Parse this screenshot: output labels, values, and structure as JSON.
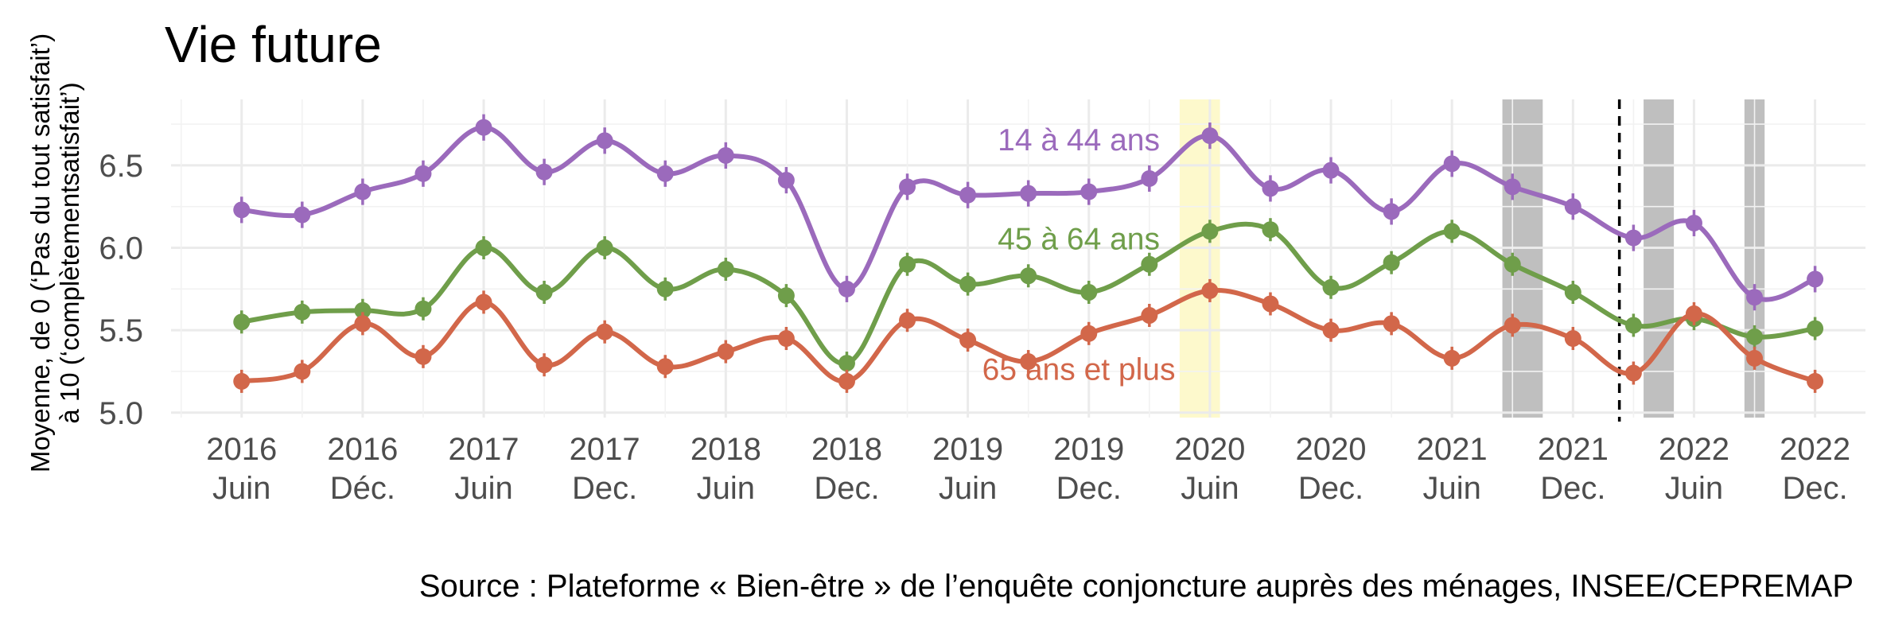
{
  "chart_data": {
    "type": "line",
    "title": "Vie future",
    "ylabel_lines": [
      "Moyenne, de 0 (‘Pas du tout satisfait’)",
      "à 10 (‘complètementsatisfait’)"
    ],
    "caption": "Source : Plateforme « Bien-être » de l’enquête conjoncture auprès des ménages, INSEE/CEPREMAP",
    "ylim": [
      4.97,
      6.9
    ],
    "yticks": [
      "5.0",
      "5.5",
      "6.0",
      "6.5"
    ],
    "grid": true,
    "xticks": [
      {
        "year": "2016",
        "period": "Juin"
      },
      {
        "year": "2016",
        "period": "Déc."
      },
      {
        "year": "2017",
        "period": "Juin"
      },
      {
        "year": "2017",
        "period": "Dec."
      },
      {
        "year": "2018",
        "period": "Juin"
      },
      {
        "year": "2018",
        "period": "Dec."
      },
      {
        "year": "2019",
        "period": "Juin"
      },
      {
        "year": "2019",
        "period": "Dec."
      },
      {
        "year": "2020",
        "period": "Juin"
      },
      {
        "year": "2020",
        "period": "Dec."
      },
      {
        "year": "2021",
        "period": "Juin"
      },
      {
        "year": "2021",
        "period": "Dec."
      },
      {
        "year": "2022",
        "period": "Juin"
      },
      {
        "year": "2022",
        "period": "Dec."
      }
    ],
    "x_unit": "months since 2016 Juin (tick every 6 months)",
    "x_range": [
      -3.5,
      80.5
    ],
    "highlight_bands": [
      {
        "from": 46.5,
        "to": 48.5,
        "color": "#fdf9cc"
      },
      {
        "from": 62.5,
        "to": 64.5,
        "color": "#bfbfbf"
      },
      {
        "from": 69.5,
        "to": 71.0,
        "color": "#bfbfbf"
      },
      {
        "from": 74.5,
        "to": 75.5,
        "color": "#bfbfbf"
      }
    ],
    "vline": {
      "x": 68.3,
      "style": "dashed"
    },
    "series": [
      {
        "name": "14 à 44 ans",
        "color": "#9b6abc",
        "x": [
          0,
          3,
          6,
          9,
          12,
          15,
          18,
          21,
          24,
          27,
          30,
          33,
          36,
          39,
          42,
          45,
          48,
          51,
          54,
          57,
          60,
          63,
          66,
          69,
          72,
          75,
          78
        ],
        "values": [
          6.23,
          6.2,
          6.34,
          6.45,
          6.73,
          6.46,
          6.65,
          6.45,
          6.56,
          6.41,
          5.75,
          6.37,
          6.32,
          6.33,
          6.34,
          6.42,
          6.68,
          6.36,
          6.47,
          6.22,
          6.51,
          6.37,
          6.25,
          6.06,
          6.15,
          5.7,
          5.81
        ],
        "err": 0.08
      },
      {
        "name": "45 à 64 ans",
        "color": "#6f9e4a",
        "x": [
          0,
          3,
          6,
          9,
          12,
          15,
          18,
          21,
          24,
          27,
          30,
          33,
          36,
          39,
          42,
          45,
          48,
          51,
          54,
          57,
          60,
          63,
          66,
          69,
          72,
          75,
          78
        ],
        "values": [
          5.55,
          5.61,
          5.62,
          5.63,
          6.0,
          5.73,
          6.0,
          5.75,
          5.87,
          5.71,
          5.3,
          5.9,
          5.78,
          5.83,
          5.73,
          5.9,
          6.1,
          6.11,
          5.76,
          5.91,
          6.1,
          5.9,
          5.73,
          5.53,
          5.57,
          5.46,
          5.51
        ],
        "err": 0.07
      },
      {
        "name": "65 ans et plus",
        "color": "#d2674a",
        "x": [
          0,
          3,
          6,
          9,
          12,
          15,
          18,
          21,
          24,
          27,
          30,
          33,
          36,
          39,
          42,
          45,
          48,
          51,
          54,
          57,
          60,
          63,
          66,
          69,
          72,
          75,
          78
        ],
        "values": [
          5.19,
          5.25,
          5.54,
          5.34,
          5.67,
          5.29,
          5.49,
          5.28,
          5.37,
          5.45,
          5.19,
          5.56,
          5.44,
          5.31,
          5.48,
          5.59,
          5.74,
          5.66,
          5.5,
          5.54,
          5.33,
          5.53,
          5.45,
          5.24,
          5.6,
          5.33,
          5.19
        ],
        "err": 0.07
      }
    ],
    "series_labels": [
      {
        "text": "14 à 44 ans",
        "x": 41.5,
        "y": 6.59
      },
      {
        "text": "45 à 64 ans",
        "x": 41.5,
        "y": 5.99
      },
      {
        "text": "65 ans et plus",
        "x": 41.5,
        "y": 5.2
      }
    ]
  }
}
